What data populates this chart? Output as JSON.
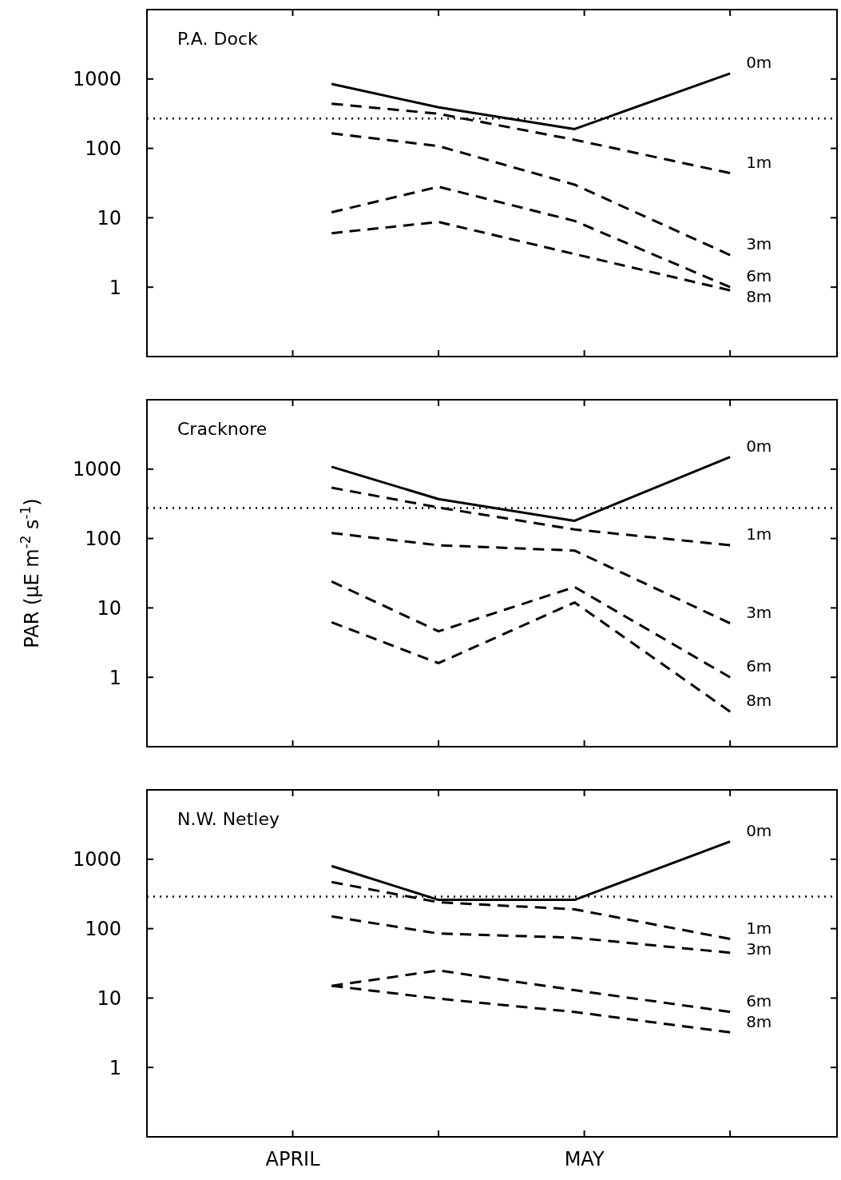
{
  "chart_data": [
    {
      "type": "line",
      "title": "P.A. Dock",
      "x": [
        "--04-05",
        "--04-16",
        "--04-30",
        "--05-16"
      ],
      "xlim": [
        "--03-17",
        "--05-27"
      ],
      "xticks": [
        {
          "value": "--04-01",
          "label": null
        },
        {
          "value": "--04-16",
          "label": null
        },
        {
          "value": "--05-01",
          "label": null
        },
        {
          "value": "--05-16",
          "label": null
        }
      ],
      "ylim": [
        0.1,
        10000
      ],
      "yticks": [
        1,
        10,
        100,
        1000
      ],
      "log": "y",
      "tick_labels": "y",
      "marker": "none",
      "grid": false,
      "series": [
        {
          "name": "0m",
          "color": "#000000",
          "line_style": "solid",
          "values": [
            850,
            390,
            190,
            1200
          ]
        },
        {
          "name": "1m",
          "color": "#000000",
          "line_style": "dashed",
          "values": [
            440,
            315,
            133,
            44
          ]
        },
        {
          "name": "3m",
          "color": "#000000",
          "line_style": "dashed",
          "values": [
            165,
            108,
            30,
            2.9
          ]
        },
        {
          "name": "6m",
          "color": "#000000",
          "line_style": "dashed",
          "values": [
            12,
            28,
            9,
            1.0
          ]
        },
        {
          "name": "8m",
          "color": "#000000",
          "line_style": "dashed",
          "values": [
            6,
            8.7,
            3,
            0.9
          ]
        }
      ],
      "ref_lines": [
        {
          "axis": "y",
          "value": 270,
          "color": "#000000",
          "line_style": "dotted"
        }
      ]
    },
    {
      "type": "line",
      "title": "Cracknore",
      "ylabel": "PAR (μE m$^{-2}$ s$^{-1}$)",
      "x": [
        "--04-05",
        "--04-16",
        "--04-30",
        "--05-16"
      ],
      "xlim": [
        "--03-17",
        "--05-27"
      ],
      "xticks": [
        {
          "value": "--04-01",
          "label": null
        },
        {
          "value": "--04-16",
          "label": null
        },
        {
          "value": "--05-01",
          "label": null
        },
        {
          "value": "--05-16",
          "label": null
        }
      ],
      "ylim": [
        0.1,
        10000
      ],
      "yticks": [
        1,
        10,
        100,
        1000
      ],
      "log": "y",
      "tick_labels": "y",
      "marker": "none",
      "grid": false,
      "series": [
        {
          "name": "0m",
          "color": "#000000",
          "line_style": "solid",
          "values": [
            1080,
            370,
            180,
            1500
          ]
        },
        {
          "name": "1m",
          "color": "#000000",
          "line_style": "dashed",
          "values": [
            540,
            280,
            135,
            80
          ]
        },
        {
          "name": "3m",
          "color": "#000000",
          "line_style": "dashed",
          "values": [
            120,
            80,
            67,
            6
          ]
        },
        {
          "name": "6m",
          "color": "#000000",
          "line_style": "dashed",
          "values": [
            24,
            4.6,
            20,
            1.0
          ]
        },
        {
          "name": "8m",
          "color": "#000000",
          "line_style": "dashed",
          "values": [
            6.2,
            1.6,
            12,
            0.32
          ]
        }
      ],
      "ref_lines": [
        {
          "axis": "y",
          "value": 275,
          "color": "#000000",
          "line_style": "dotted"
        }
      ]
    },
    {
      "type": "line",
      "title": "N.W. Netley",
      "x": [
        "--04-05",
        "--04-16",
        "--04-30",
        "--05-16"
      ],
      "xlim": [
        "--03-17",
        "--05-27"
      ],
      "xticks": [
        {
          "value": "--04-01",
          "label": "APRIL"
        },
        {
          "value": "--04-16",
          "label": null
        },
        {
          "value": "--05-01",
          "label": "MAY"
        },
        {
          "value": "--05-16",
          "label": null
        }
      ],
      "ylim": [
        0.1,
        10000
      ],
      "yticks": [
        1,
        10,
        100,
        1000
      ],
      "log": "y",
      "marker": "none",
      "grid": false,
      "series": [
        {
          "name": "0m",
          "color": "#000000",
          "line_style": "solid",
          "values": [
            800,
            260,
            260,
            1800
          ]
        },
        {
          "name": "1m",
          "color": "#000000",
          "line_style": "dashed",
          "values": [
            470,
            240,
            190,
            71
          ]
        },
        {
          "name": "3m",
          "color": "#000000",
          "line_style": "dashed",
          "values": [
            150,
            85,
            74,
            45
          ]
        },
        {
          "name": "6m",
          "color": "#000000",
          "line_style": "dashed",
          "values": [
            15,
            25,
            13,
            6.3
          ]
        },
        {
          "name": "8m",
          "color": "#000000",
          "line_style": "dashed",
          "values": [
            15,
            9.8,
            6.3,
            3.2
          ]
        }
      ],
      "ref_lines": [
        {
          "axis": "y",
          "value": 290,
          "color": "#000000",
          "line_style": "dotted"
        }
      ]
    }
  ]
}
